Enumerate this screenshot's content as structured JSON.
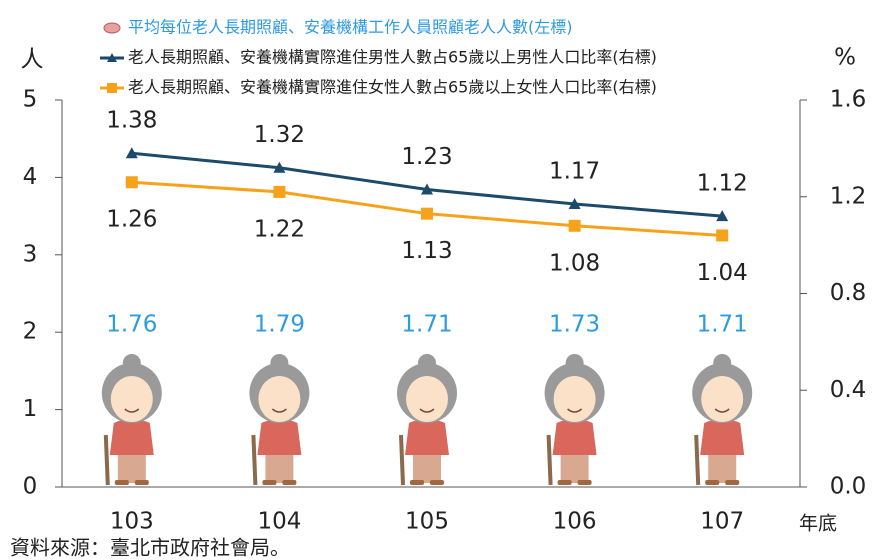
{
  "chart_data": {
    "type": "combo",
    "categories": [
      "103",
      "104",
      "105",
      "106",
      "107"
    ],
    "x_label": "年底",
    "y_label": "人",
    "y2_label": "%",
    "source": "資料來源：臺北市政府社會局。",
    "ylim": [
      0,
      5
    ],
    "yticks": [
      0,
      1,
      2,
      3,
      4,
      5
    ],
    "y2lim": [
      0,
      1.6
    ],
    "y2ticks": [
      {
        "value": 0,
        "label": "0.0"
      },
      0.4,
      0.8,
      1.2,
      1.6
    ],
    "series": [
      {
        "name": "平均每位老人長期照顧、安養機構工作人員照顧老人人數(左標)",
        "type": "pictogram",
        "color": "#2e9be0",
        "values": [
          1.76,
          1.79,
          1.71,
          1.73,
          1.71
        ]
      },
      {
        "name": "老人長期照顧、安養機構實際進住男性人數占65歲以上男性人口比率(右標)",
        "type": "line",
        "axis": "y2",
        "color": "#1c4a6b",
        "values": [
          1.38,
          1.32,
          1.23,
          1.17,
          1.12
        ]
      },
      {
        "name": "老人長期照顧、安養機構實際進住女性人數占65歲以上女性人口比率(右標)",
        "type": "line",
        "axis": "y2",
        "color": "#f7a21b",
        "values": [
          1.26,
          1.22,
          1.13,
          1.08,
          1.04
        ]
      }
    ]
  }
}
